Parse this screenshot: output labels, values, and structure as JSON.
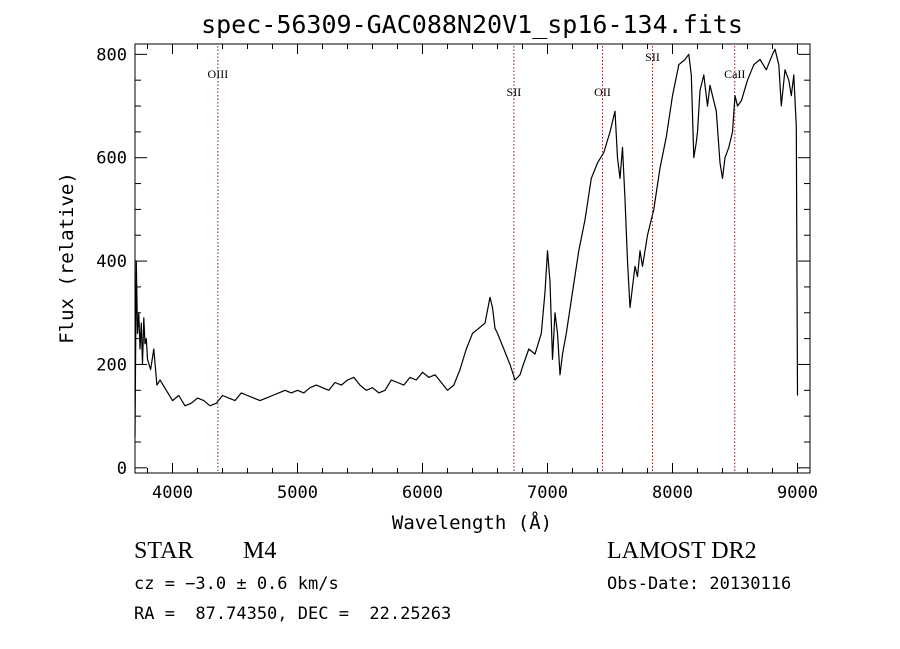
{
  "chart_data": {
    "type": "line",
    "title": "spec-56309-GAC088N20V1_sp16-134.fits",
    "xlabel": "Wavelength (Å)",
    "ylabel": "Flux (relative)",
    "xlim": [
      3700,
      9100
    ],
    "ylim": [
      -10,
      820
    ],
    "x_ticks": [
      4000,
      5000,
      6000,
      7000,
      8000,
      9000
    ],
    "y_ticks": [
      0,
      200,
      400,
      600,
      800
    ],
    "grid": false,
    "line_color": "#000000",
    "marker_color": "#8b1a1a",
    "lines": [
      {
        "label": "OIII",
        "x": 4363
      },
      {
        "label": "SII",
        "x": 6731
      },
      {
        "label": "OII",
        "x": 7440
      },
      {
        "label": "SII",
        "x": 7840
      },
      {
        "label": "CaII",
        "x": 8498
      }
    ],
    "series": [
      {
        "x": [
          3700,
          3710,
          3720,
          3730,
          3740,
          3750,
          3760,
          3770,
          3780,
          3790,
          3800,
          3825,
          3850,
          3875,
          3900,
          3950,
          4000,
          4050,
          4100,
          4150,
          4200,
          4250,
          4300,
          4350,
          4400,
          4450,
          4500,
          4550,
          4600,
          4650,
          4700,
          4750,
          4800,
          4850,
          4900,
          4950,
          5000,
          5050,
          5100,
          5150,
          5200,
          5250,
          5300,
          5350,
          5400,
          5450,
          5500,
          5550,
          5600,
          5650,
          5700,
          5750,
          5800,
          5850,
          5900,
          5950,
          6000,
          6050,
          6100,
          6150,
          6200,
          6250,
          6300,
          6350,
          6400,
          6450,
          6500,
          6540,
          6560,
          6580,
          6600,
          6650,
          6700,
          6740,
          6780,
          6800,
          6850,
          6900,
          6950,
          6980,
          7000,
          7020,
          7040,
          7060,
          7080,
          7100,
          7120,
          7150,
          7200,
          7250,
          7300,
          7350,
          7400,
          7450,
          7500,
          7540,
          7560,
          7580,
          7600,
          7620,
          7640,
          7660,
          7680,
          7700,
          7720,
          7740,
          7760,
          7800,
          7850,
          7900,
          7950,
          8000,
          8050,
          8100,
          8130,
          8150,
          8170,
          8190,
          8200,
          8220,
          8250,
          8280,
          8300,
          8320,
          8350,
          8380,
          8400,
          8420,
          8450,
          8480,
          8500,
          8520,
          8550,
          8600,
          8650,
          8700,
          8750,
          8800,
          8820,
          8850,
          8870,
          8900,
          8930,
          8950,
          8970,
          8990,
          9000
        ],
        "y": [
          60,
          400,
          260,
          300,
          230,
          280,
          200,
          290,
          240,
          250,
          210,
          190,
          230,
          160,
          170,
          150,
          130,
          140,
          120,
          125,
          135,
          130,
          120,
          125,
          140,
          135,
          130,
          145,
          140,
          135,
          130,
          135,
          140,
          145,
          150,
          145,
          150,
          145,
          155,
          160,
          155,
          150,
          165,
          160,
          170,
          175,
          160,
          150,
          155,
          145,
          150,
          170,
          165,
          160,
          175,
          170,
          185,
          175,
          180,
          165,
          150,
          160,
          190,
          230,
          260,
          270,
          280,
          330,
          310,
          270,
          260,
          230,
          200,
          170,
          180,
          195,
          230,
          220,
          260,
          340,
          420,
          360,
          210,
          300,
          260,
          180,
          220,
          260,
          340,
          420,
          480,
          560,
          590,
          610,
          650,
          690,
          600,
          560,
          620,
          520,
          400,
          310,
          350,
          390,
          370,
          420,
          390,
          450,
          500,
          580,
          640,
          720,
          780,
          790,
          800,
          760,
          600,
          630,
          650,
          730,
          760,
          700,
          740,
          720,
          690,
          590,
          560,
          600,
          620,
          650,
          720,
          700,
          710,
          750,
          780,
          790,
          770,
          800,
          810,
          780,
          700,
          770,
          750,
          720,
          760,
          660,
          140
        ]
      }
    ],
    "info": {
      "object_type": "STAR",
      "subclass": "M4",
      "survey": "LAMOST DR2",
      "cz": "cz = −3.0 ± 0.6 km/s",
      "obs_date": "Obs-Date: 20130116",
      "coords": "RA =  87.74350, DEC =  22.25263"
    }
  }
}
